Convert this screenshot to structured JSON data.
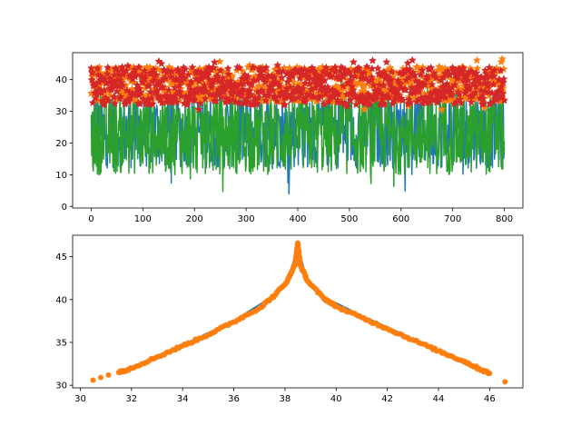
{
  "chart_data": [
    {
      "type": "line",
      "title": "",
      "xlabel": "",
      "ylabel": "",
      "xlim": [
        -36,
        836
      ],
      "ylim": [
        -0.5,
        48.5
      ],
      "xticks": [
        0,
        100,
        200,
        300,
        400,
        500,
        600,
        700,
        800
      ],
      "yticks": [
        0,
        10,
        20,
        30,
        40
      ],
      "n_points": 801,
      "series": [
        {
          "color": "#1f77b4",
          "style": "line",
          "band": [
            3.5,
            41
          ],
          "typical": [
            12,
            36
          ]
        },
        {
          "color": "#2ca02c",
          "style": "line",
          "band": [
            2,
            45.5
          ],
          "typical": [
            10,
            35
          ]
        },
        {
          "color": "#ff7f0e",
          "style": "star-markers",
          "band": [
            30.5,
            46.5
          ],
          "typical": [
            33,
            44
          ]
        },
        {
          "color": "#d62728",
          "style": "star-markers",
          "band": [
            30.5,
            46.6
          ],
          "typical": [
            32,
            44
          ]
        }
      ],
      "grid": false,
      "legend": "none"
    },
    {
      "type": "scatter",
      "title": "",
      "xlabel": "",
      "ylabel": "",
      "xlim": [
        29.7,
        47.3
      ],
      "ylim": [
        29.7,
        47.5
      ],
      "xticks": [
        30,
        32,
        34,
        36,
        38,
        40,
        42,
        44,
        46
      ],
      "yticks": [
        30,
        35,
        40,
        45
      ],
      "peak": [
        38.5,
        45.8
      ],
      "series": [
        {
          "color": "#1f77b4",
          "style": "line",
          "points": [
            [
              32,
              32.0
            ],
            [
              34,
              34.6
            ],
            [
              36,
              37.4
            ],
            [
              37.5,
              40.2
            ],
            [
              38.2,
              42.6
            ],
            [
              38.5,
              45.8
            ],
            [
              38.8,
              42.5
            ],
            [
              39.5,
              40.2
            ],
            [
              41,
              38.0
            ],
            [
              42.5,
              36.0
            ],
            [
              44,
              34.0
            ],
            [
              46,
              31.3
            ]
          ]
        },
        {
          "color": "#ff7f0e",
          "style": "dot-markers",
          "points": [
            [
              30.5,
              30.6
            ],
            [
              30.8,
              30.9
            ],
            [
              31.1,
              31.2
            ],
            [
              31.5,
              31.5
            ],
            [
              32,
              32.0
            ],
            [
              33,
              33.3
            ],
            [
              34,
              34.6
            ],
            [
              35,
              35.9
            ],
            [
              36,
              37.4
            ],
            [
              37,
              39.0
            ],
            [
              37.6,
              40.5
            ],
            [
              38.1,
              42.2
            ],
            [
              38.4,
              44.2
            ],
            [
              38.5,
              46.6
            ],
            [
              38.6,
              44.0
            ],
            [
              38.9,
              42.1
            ],
            [
              39.5,
              40.2
            ],
            [
              40,
              39.2
            ],
            [
              41,
              37.9
            ],
            [
              42,
              36.6
            ],
            [
              43,
              35.3
            ],
            [
              44,
              34.0
            ],
            [
              45,
              32.8
            ],
            [
              45.6,
              31.9
            ],
            [
              46,
              31.4
            ],
            [
              46.6,
              30.4
            ]
          ]
        }
      ],
      "grid": false,
      "legend": "none"
    }
  ]
}
